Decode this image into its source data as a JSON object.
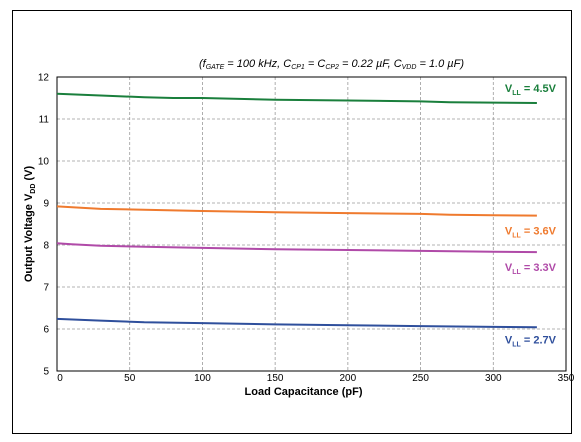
{
  "chart_data": {
    "type": "line",
    "subtitle": {
      "prefix": "(f",
      "sub1": "GATE",
      "mid1": " = 100 kHz, C",
      "sub2": "CP1",
      "mid2": " = C",
      "sub3": "CP2",
      "mid3": " = 0.22 µF, C",
      "sub4": "VDD",
      "suffix": " = 1.0 µF)"
    },
    "xlabel": "Load Capacitance (pF)",
    "ylabel": {
      "main": "Output Voltage V",
      "sub": "DD",
      "unit": " (V)"
    },
    "xlim": [
      0,
      350
    ],
    "ylim": [
      5,
      12
    ],
    "xticks": [
      "0",
      "50",
      "100",
      "150",
      "200",
      "250",
      "300",
      "350"
    ],
    "yticks": [
      "5",
      "6",
      "7",
      "8",
      "9",
      "10",
      "11",
      "12"
    ],
    "grid": true,
    "series": [
      {
        "name": {
          "pre": "V",
          "sub": "LL",
          "post": " = 4.5V"
        },
        "color": "#1a7f3c",
        "x": [
          0,
          30,
          60,
          80,
          100,
          150,
          200,
          250,
          270,
          300,
          330
        ],
        "y": [
          11.6,
          11.56,
          11.52,
          11.5,
          11.5,
          11.46,
          11.44,
          11.42,
          11.4,
          11.39,
          11.38
        ]
      },
      {
        "name": {
          "pre": "V",
          "sub": "LL",
          "post": " = 3.6V"
        },
        "color": "#ef7a2e",
        "x": [
          0,
          30,
          60,
          100,
          150,
          200,
          250,
          270,
          300,
          330
        ],
        "y": [
          8.92,
          8.86,
          8.84,
          8.81,
          8.78,
          8.76,
          8.74,
          8.72,
          8.71,
          8.7
        ]
      },
      {
        "name": {
          "pre": "V",
          "sub": "LL",
          "post": " = 3.3V"
        },
        "color": "#b04aa8",
        "x": [
          0,
          10,
          30,
          60,
          100,
          150,
          200,
          250,
          300,
          330
        ],
        "y": [
          8.04,
          8.02,
          7.98,
          7.96,
          7.93,
          7.9,
          7.88,
          7.86,
          7.84,
          7.83
        ]
      },
      {
        "name": {
          "pre": "V",
          "sub": "LL",
          "post": " = 2.7V"
        },
        "color": "#2f4f9c",
        "x": [
          0,
          30,
          60,
          100,
          150,
          200,
          250,
          300,
          330
        ],
        "y": [
          6.24,
          6.2,
          6.16,
          6.14,
          6.11,
          6.09,
          6.07,
          6.05,
          6.04
        ]
      }
    ]
  }
}
